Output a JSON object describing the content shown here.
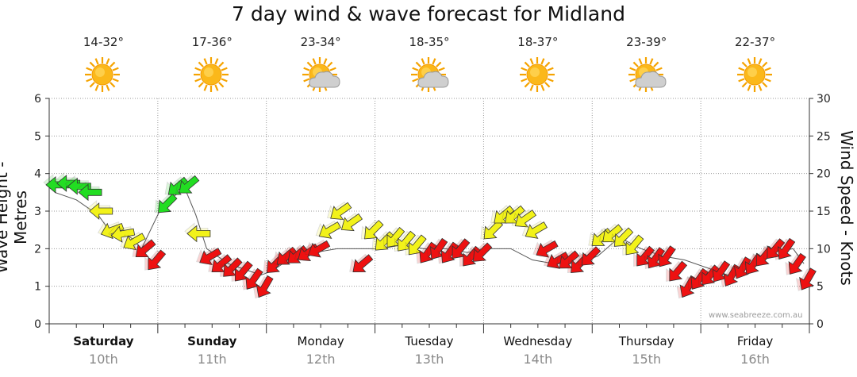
{
  "chart_data": {
    "type": "line",
    "title": "7 day wind & wave forecast for Midland",
    "ylabel_left": "Wave Height - Metres",
    "ylabel_right": "Wind Speed - Knots",
    "ylim_left": [
      0,
      6
    ],
    "ylim_right": [
      0,
      30
    ],
    "yticks_left": [
      "0",
      "1",
      "2",
      "3",
      "4",
      "5",
      "6"
    ],
    "yticks_right": [
      "0",
      "5",
      "10",
      "15",
      "20",
      "25",
      "30"
    ],
    "watermark": "www.seabreeze.com.au",
    "days": [
      {
        "name": "Saturday",
        "date": "10th",
        "temp": "14-32°",
        "weather": "sunny",
        "bold": true
      },
      {
        "name": "Sunday",
        "date": "11th",
        "temp": "17-36°",
        "weather": "sunny",
        "bold": true
      },
      {
        "name": "Monday",
        "date": "12th",
        "temp": "23-34°",
        "weather": "partly-cloudy",
        "bold": false
      },
      {
        "name": "Tuesday",
        "date": "13th",
        "temp": "18-35°",
        "weather": "partly-cloudy",
        "bold": false
      },
      {
        "name": "Wednesday",
        "date": "14th",
        "temp": "18-37°",
        "weather": "sunny",
        "bold": false
      },
      {
        "name": "Thursday",
        "date": "15th",
        "temp": "23-39°",
        "weather": "partly-cloudy",
        "bold": false
      },
      {
        "name": "Friday",
        "date": "16th",
        "temp": "22-37°",
        "weather": "sunny",
        "bold": false
      }
    ],
    "wind_series": {
      "name": "Wind Speed (knots)",
      "x_days": [
        0,
        0.1,
        0.2,
        0.3,
        0.4,
        0.5,
        0.6,
        0.7,
        0.8,
        0.9,
        1.0,
        1.1,
        1.2,
        1.3,
        1.4,
        1.5,
        1.6,
        1.7,
        1.8,
        1.9,
        2.0,
        2.1,
        2.2,
        2.3,
        2.4,
        2.5,
        2.6,
        2.7,
        2.8,
        2.9,
        3.0,
        3.1,
        3.2,
        3.3,
        3.4,
        3.5,
        3.6,
        3.7,
        3.8,
        3.9,
        4.0,
        4.1,
        4.2,
        4.3,
        4.4,
        4.5,
        4.6,
        4.7,
        4.8,
        4.9,
        5.0,
        5.1,
        5.2,
        5.3,
        5.4,
        5.5,
        5.6,
        5.7,
        5.8,
        5.9,
        6.0,
        6.1,
        6.2,
        6.3,
        6.4,
        6.5,
        6.6,
        6.7,
        6.8,
        6.9
      ],
      "knots": [
        18.5,
        18.7,
        18.3,
        17.5,
        15,
        12.5,
        12,
        11,
        10,
        8.5,
        16,
        18.3,
        18.5,
        12,
        9,
        8,
        7.5,
        7,
        6,
        5,
        8,
        9,
        9.2,
        9.5,
        10,
        12.5,
        15,
        13.5,
        8,
        12.5,
        11,
        11.5,
        11,
        10.5,
        9.5,
        10,
        9.5,
        10,
        9,
        9.5,
        12.5,
        14.5,
        14.5,
        14,
        12.5,
        10,
        8.5,
        8.5,
        8,
        9,
        11.5,
        12,
        11.5,
        10.5,
        9,
        8.8,
        9,
        7,
        5,
        6,
        6.5,
        7,
        6.5,
        7.5,
        8,
        9,
        10,
        10,
        8,
        6
      ],
      "direction_deg": [
        270,
        270,
        270,
        270,
        270,
        250,
        260,
        240,
        230,
        220,
        225,
        230,
        230,
        270,
        240,
        230,
        225,
        220,
        215,
        210,
        225,
        230,
        230,
        235,
        240,
        240,
        235,
        235,
        230,
        225,
        225,
        220,
        220,
        220,
        215,
        215,
        215,
        220,
        220,
        225,
        225,
        230,
        230,
        235,
        240,
        240,
        240,
        230,
        225,
        225,
        230,
        230,
        225,
        220,
        220,
        215,
        215,
        220,
        210,
        215,
        220,
        215,
        210,
        210,
        215,
        220,
        220,
        215,
        215,
        210
      ],
      "color_scale": [
        {
          "max_knots": 10,
          "color": "#ee1111"
        },
        {
          "max_knots": 15,
          "color": "#f2f21a"
        },
        {
          "max_knots": 30,
          "color": "#22dd22"
        }
      ]
    },
    "wave_series": {
      "name": "Wave Height (metres)",
      "x_days": [
        0,
        0.2,
        0.4,
        0.5,
        0.6,
        0.7,
        0.8,
        1.0,
        1.2,
        1.3,
        1.4,
        1.6,
        1.8,
        1.9,
        2.0,
        2.2,
        2.4,
        2.6,
        2.8,
        3.0,
        3.2,
        3.4,
        3.6,
        3.8,
        4.0,
        4.2,
        4.4,
        4.6,
        4.8,
        5.0,
        5.2,
        5.4,
        5.6,
        5.8,
        6.0,
        6.2,
        6.4,
        6.6,
        6.8,
        6.9
      ],
      "metres": [
        3.5,
        3.3,
        2.9,
        2.5,
        2.5,
        2.3,
        2.0,
        3.2,
        3.6,
        2.9,
        2.0,
        1.6,
        1.4,
        1.3,
        1.4,
        1.8,
        1.9,
        2.0,
        2.0,
        2.0,
        2.1,
        2.0,
        2.0,
        1.9,
        2.0,
        2.0,
        1.7,
        1.6,
        1.6,
        1.8,
        2.3,
        2.0,
        1.8,
        1.7,
        1.5,
        1.3,
        1.6,
        1.9,
        2.0,
        1.6
      ],
      "color": "#555555"
    }
  }
}
